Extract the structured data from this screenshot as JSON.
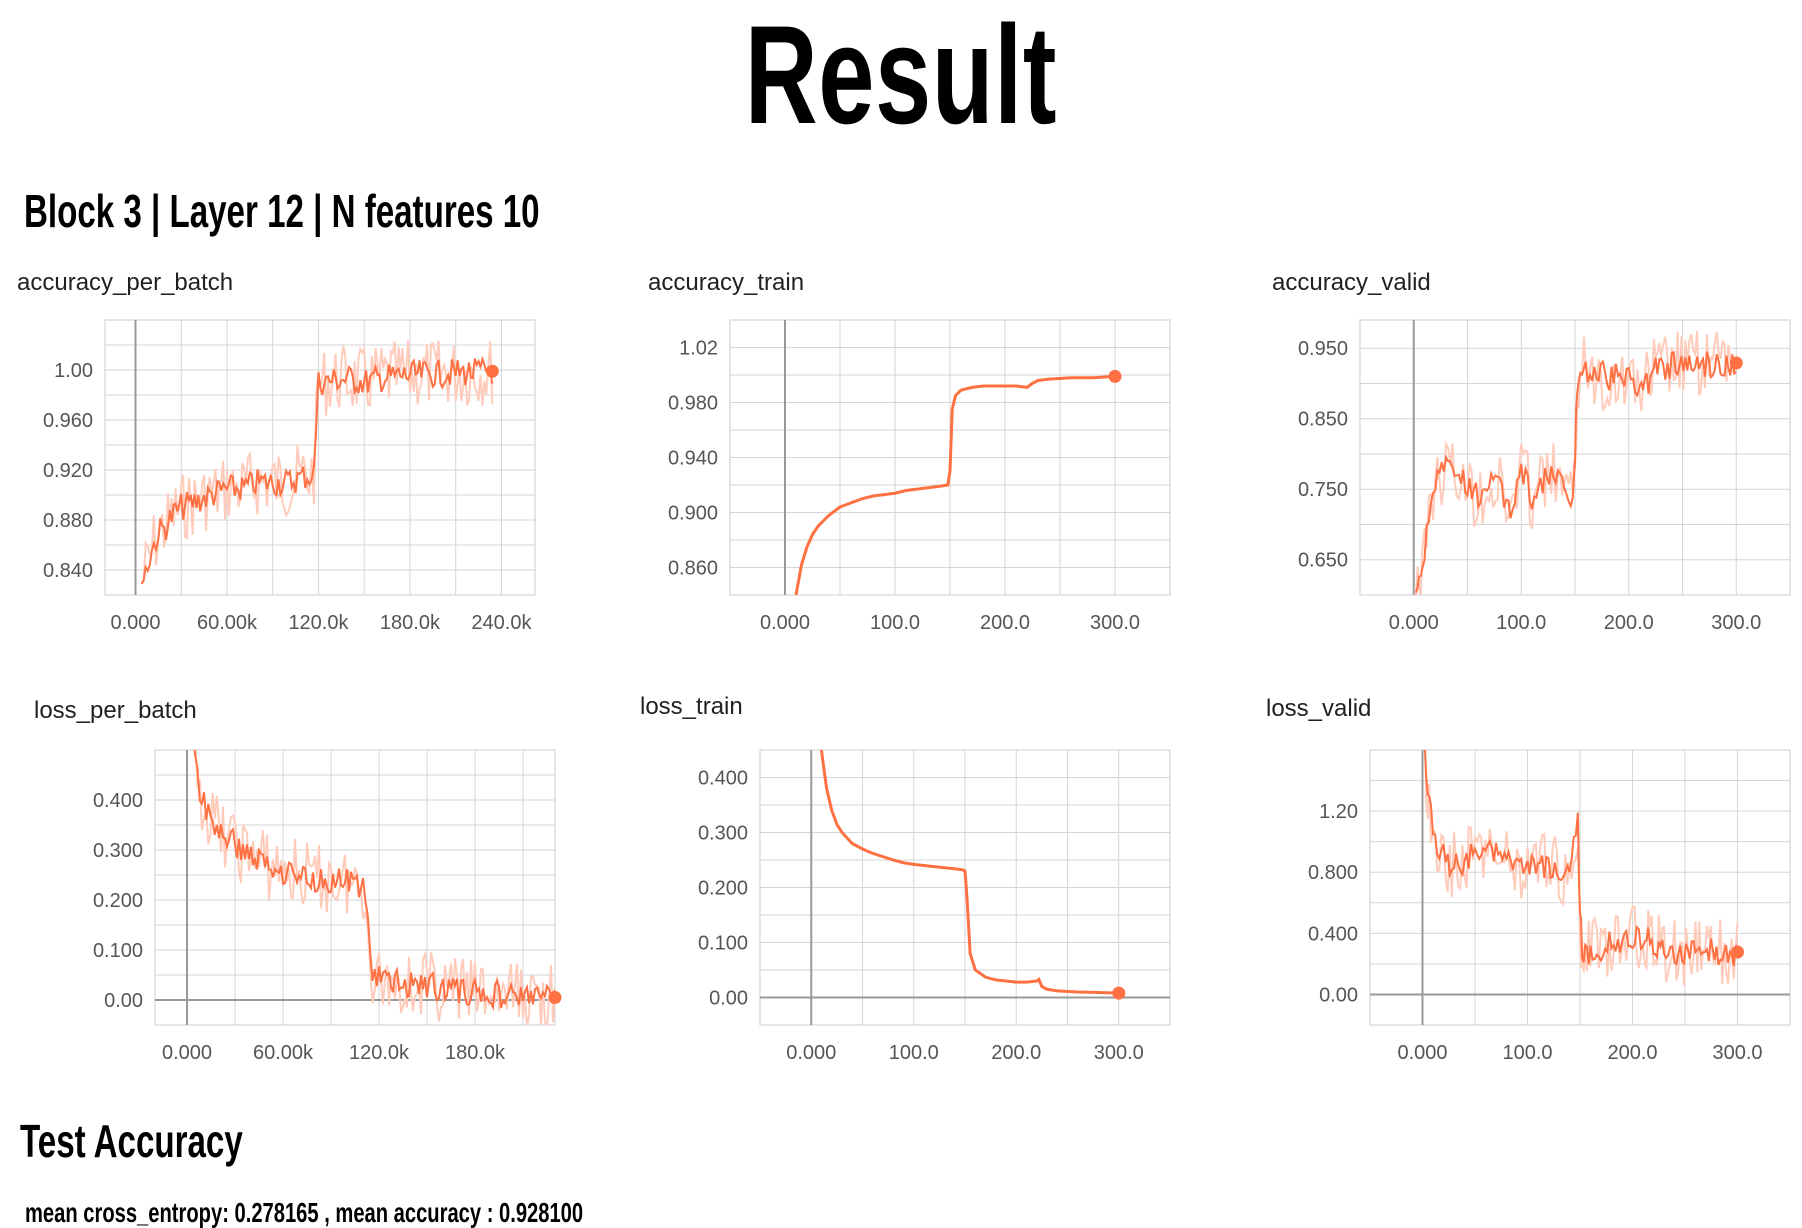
{
  "page": {
    "title": "Result",
    "subtitle": "Block 3 | Layer 12 | N features 10",
    "test_title": "Test Accuracy",
    "test_text": "mean cross_entropy: 0.278165 , mean accuracy : 0.928100"
  },
  "colors": {
    "line": "#ff7043",
    "line_light": "#ffccbc",
    "grid": "#d6d6d6",
    "axis": "#999999"
  },
  "chart_data": [
    {
      "type": "line",
      "title": "accuracy_per_batch",
      "xlim": [
        -20000,
        262000
      ],
      "ylim": [
        0.82,
        1.04
      ],
      "xticks": [
        0,
        60000,
        120000,
        180000,
        240000
      ],
      "xtick_labels": [
        "0.000",
        "60.00k",
        "120.0k",
        "180.0k",
        "240.0k"
      ],
      "yticks": [
        0.84,
        0.88,
        0.92,
        0.96,
        1.0
      ],
      "ytick_labels": [
        "0.840",
        "0.880",
        "0.920",
        "0.960",
        "1.00"
      ],
      "noisy": true,
      "x": [
        4000,
        8000,
        12000,
        15000,
        20000,
        25000,
        30000,
        40000,
        50000,
        60000,
        70000,
        80000,
        90000,
        100000,
        105000,
        110000,
        114000,
        117000,
        120000,
        130000,
        140000,
        150000,
        160000,
        170000,
        180000,
        190000,
        200000,
        210000,
        220000,
        230000,
        234000
      ],
      "y": [
        0.83,
        0.845,
        0.86,
        0.87,
        0.875,
        0.885,
        0.89,
        0.895,
        0.9,
        0.905,
        0.905,
        0.91,
        0.91,
        0.91,
        0.912,
        0.915,
        0.915,
        0.918,
        0.99,
        0.992,
        0.993,
        0.99,
        0.993,
        0.995,
        0.996,
        0.997,
        0.997,
        0.998,
        0.998,
        0.999,
        0.999
      ]
    },
    {
      "type": "line",
      "title": "accuracy_train",
      "xlim": [
        -50,
        350
      ],
      "ylim": [
        0.84,
        1.04
      ],
      "xticks": [
        0,
        100,
        200,
        300
      ],
      "xtick_labels": [
        "0.000",
        "100.0",
        "200.0",
        "300.0"
      ],
      "yticks": [
        0.86,
        0.9,
        0.94,
        0.98,
        1.02
      ],
      "ytick_labels": [
        "0.860",
        "0.900",
        "0.940",
        "0.980",
        "1.02"
      ],
      "noisy": false,
      "x": [
        10,
        15,
        20,
        25,
        30,
        40,
        50,
        60,
        70,
        80,
        90,
        100,
        110,
        120,
        130,
        140,
        148,
        150,
        152,
        155,
        160,
        170,
        180,
        190,
        200,
        210,
        220,
        225,
        230,
        240,
        260,
        280,
        300
      ],
      "y": [
        0.84,
        0.862,
        0.875,
        0.884,
        0.89,
        0.898,
        0.904,
        0.907,
        0.91,
        0.912,
        0.913,
        0.914,
        0.916,
        0.917,
        0.918,
        0.919,
        0.92,
        0.93,
        0.975,
        0.985,
        0.989,
        0.991,
        0.992,
        0.992,
        0.992,
        0.992,
        0.991,
        0.994,
        0.996,
        0.997,
        0.998,
        0.998,
        0.999
      ]
    },
    {
      "type": "line",
      "title": "accuracy_valid",
      "xlim": [
        -50,
        350
      ],
      "ylim": [
        0.6,
        0.99
      ],
      "xticks": [
        0,
        100,
        200,
        300
      ],
      "xtick_labels": [
        "0.000",
        "100.0",
        "200.0",
        "300.0"
      ],
      "yticks": [
        0.65,
        0.75,
        0.85,
        0.95
      ],
      "ytick_labels": [
        "0.650",
        "0.750",
        "0.850",
        "0.950"
      ],
      "noisy": true,
      "x": [
        2,
        5,
        8,
        12,
        16,
        20,
        30,
        40,
        50,
        60,
        70,
        80,
        90,
        100,
        110,
        120,
        130,
        140,
        148,
        150,
        152,
        155,
        160,
        170,
        180,
        190,
        200,
        210,
        215,
        220,
        225,
        230,
        240,
        260,
        280,
        300
      ],
      "y": [
        0.6,
        0.64,
        0.62,
        0.7,
        0.74,
        0.76,
        0.78,
        0.77,
        0.75,
        0.74,
        0.76,
        0.75,
        0.72,
        0.78,
        0.74,
        0.76,
        0.77,
        0.75,
        0.72,
        0.8,
        0.9,
        0.915,
        0.92,
        0.915,
        0.91,
        0.91,
        0.905,
        0.9,
        0.895,
        0.91,
        0.92,
        0.925,
        0.925,
        0.928,
        0.928,
        0.929
      ]
    },
    {
      "type": "line",
      "title": "loss_per_batch",
      "xlim": [
        -20000,
        230000
      ],
      "ylim": [
        -0.05,
        0.5
      ],
      "xticks": [
        0,
        60000,
        120000,
        180000
      ],
      "xtick_labels": [
        "0.000",
        "60.00k",
        "120.0k",
        "180.0k"
      ],
      "yticks": [
        0.0,
        0.1,
        0.2,
        0.3,
        0.4
      ],
      "ytick_labels": [
        "0.00",
        "0.100",
        "0.200",
        "0.300",
        "0.400"
      ],
      "noisy": true,
      "x": [
        2000,
        5000,
        8000,
        12000,
        16000,
        20000,
        30000,
        40000,
        50000,
        60000,
        70000,
        80000,
        90000,
        100000,
        110000,
        113000,
        116000,
        120000,
        130000,
        140000,
        150000,
        160000,
        170000,
        180000,
        190000,
        200000,
        210000,
        230000
      ],
      "y": [
        0.55,
        0.48,
        0.42,
        0.38,
        0.35,
        0.34,
        0.31,
        0.29,
        0.27,
        0.26,
        0.25,
        0.24,
        0.24,
        0.235,
        0.23,
        0.15,
        0.06,
        0.04,
        0.035,
        0.032,
        0.03,
        0.025,
        0.02,
        0.015,
        0.012,
        0.01,
        0.008,
        0.005
      ]
    },
    {
      "type": "line",
      "title": "loss_train",
      "xlim": [
        -50,
        350
      ],
      "ylim": [
        -0.05,
        0.45
      ],
      "xticks": [
        0,
        100,
        200,
        300
      ],
      "xtick_labels": [
        "0.000",
        "100.0",
        "200.0",
        "300.0"
      ],
      "yticks": [
        0.0,
        0.1,
        0.2,
        0.3,
        0.4
      ],
      "ytick_labels": [
        "0.00",
        "0.100",
        "0.200",
        "0.300",
        "0.400"
      ],
      "noisy": false,
      "x": [
        10,
        12,
        15,
        20,
        25,
        30,
        40,
        50,
        60,
        70,
        80,
        90,
        100,
        110,
        120,
        130,
        140,
        148,
        150,
        152,
        155,
        160,
        170,
        180,
        190,
        200,
        210,
        220,
        222,
        225,
        230,
        240,
        260,
        280,
        300
      ],
      "y": [
        0.45,
        0.42,
        0.38,
        0.34,
        0.315,
        0.3,
        0.28,
        0.27,
        0.262,
        0.256,
        0.25,
        0.245,
        0.242,
        0.24,
        0.238,
        0.236,
        0.234,
        0.232,
        0.23,
        0.18,
        0.08,
        0.05,
        0.037,
        0.032,
        0.03,
        0.028,
        0.028,
        0.03,
        0.033,
        0.02,
        0.015,
        0.012,
        0.01,
        0.009,
        0.008
      ]
    },
    {
      "type": "line",
      "title": "loss_valid",
      "xlim": [
        -50,
        350
      ],
      "ylim": [
        -0.2,
        1.6
      ],
      "xticks": [
        0,
        100,
        200,
        300
      ],
      "xtick_labels": [
        "0.000",
        "100.0",
        "200.0",
        "300.0"
      ],
      "yticks": [
        0.0,
        0.4,
        0.8,
        1.2
      ],
      "ytick_labels": [
        "0.00",
        "0.400",
        "0.800",
        "1.20"
      ],
      "noisy": true,
      "x": [
        2,
        5,
        8,
        12,
        16,
        20,
        30,
        40,
        50,
        60,
        70,
        80,
        90,
        100,
        110,
        120,
        130,
        140,
        148,
        150,
        152,
        155,
        160,
        170,
        180,
        190,
        200,
        210,
        215,
        220,
        225,
        230,
        240,
        260,
        280,
        300
      ],
      "y": [
        1.6,
        1.3,
        1.2,
        1.05,
        0.95,
        0.9,
        0.85,
        0.88,
        0.92,
        0.95,
        0.9,
        0.88,
        0.8,
        0.85,
        0.86,
        0.82,
        0.8,
        0.82,
        1.15,
        0.5,
        0.3,
        0.27,
        0.28,
        0.3,
        0.33,
        0.36,
        0.36,
        0.37,
        0.4,
        0.35,
        0.3,
        0.28,
        0.28,
        0.275,
        0.275,
        0.278
      ]
    }
  ]
}
